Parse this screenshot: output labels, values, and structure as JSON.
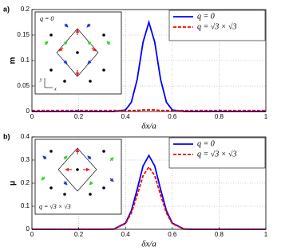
{
  "chart_data": [
    {
      "type": "line",
      "panel_label": "a)",
      "ylabel": "m",
      "xlabel": "δx/a",
      "inset_label": "q = 0",
      "inset_axis_labels": [
        "x",
        "y"
      ],
      "x": [
        0,
        0.1,
        0.2,
        0.3,
        0.35,
        0.4,
        0.425,
        0.45,
        0.475,
        0.5,
        0.525,
        0.55,
        0.575,
        0.6,
        0.65,
        0.7,
        0.8,
        0.9,
        1
      ],
      "series": [
        {
          "name": "q = 0",
          "color": "#0000ff",
          "style": "solid",
          "values": [
            0,
            0,
            0,
            0,
            0,
            0.003,
            0.018,
            0.063,
            0.136,
            0.175,
            0.136,
            0.063,
            0.018,
            0.003,
            0,
            0,
            0,
            0,
            0
          ]
        },
        {
          "name": "q = √3 × √3",
          "color": "#ff0000",
          "style": "dashed",
          "values": [
            0.002,
            0.002,
            0.002,
            0.002,
            0.002,
            0.002,
            0.002,
            0.002,
            0.003,
            0.003,
            0.003,
            0.002,
            0.002,
            0.002,
            0.002,
            0.002,
            0.002,
            0.002,
            0.002
          ]
        }
      ],
      "xlim": [
        0,
        1
      ],
      "xticks": [
        0,
        0.2,
        0.4,
        0.6,
        0.8,
        1
      ],
      "ylim": [
        0,
        0.2
      ],
      "yticks": [
        0,
        0.05,
        0.1,
        0.15,
        0.2
      ],
      "grid": true,
      "legend": "upper right"
    },
    {
      "type": "line",
      "panel_label": "b)",
      "ylabel": "μ",
      "xlabel": "δx/a",
      "inset_label": "q = √3 × √3",
      "x": [
        0,
        0.1,
        0.2,
        0.3,
        0.35,
        0.4,
        0.425,
        0.45,
        0.475,
        0.5,
        0.525,
        0.55,
        0.575,
        0.6,
        0.65,
        0.7,
        0.8,
        0.9,
        1
      ],
      "series": [
        {
          "name": "q = 0",
          "color": "#0000ff",
          "style": "solid",
          "values": [
            0,
            0,
            0,
            0,
            0.001,
            0.027,
            0.08,
            0.173,
            0.274,
            0.32,
            0.274,
            0.173,
            0.08,
            0.027,
            0.001,
            0,
            0,
            0,
            0
          ]
        },
        {
          "name": "q = √3 × √3",
          "color": "#ff0000",
          "style": "dashed",
          "values": [
            0,
            0,
            0,
            0,
            0.001,
            0.024,
            0.07,
            0.148,
            0.232,
            0.27,
            0.232,
            0.148,
            0.07,
            0.024,
            0.001,
            0,
            0,
            0,
            0
          ]
        }
      ],
      "xlim": [
        0,
        1
      ],
      "xticks": [
        0,
        0.2,
        0.4,
        0.6,
        0.8,
        1
      ],
      "ylim": [
        0,
        0.4
      ],
      "yticks": [
        0,
        0.1,
        0.2,
        0.3,
        0.4
      ],
      "grid": true,
      "legend": "upper right"
    }
  ]
}
